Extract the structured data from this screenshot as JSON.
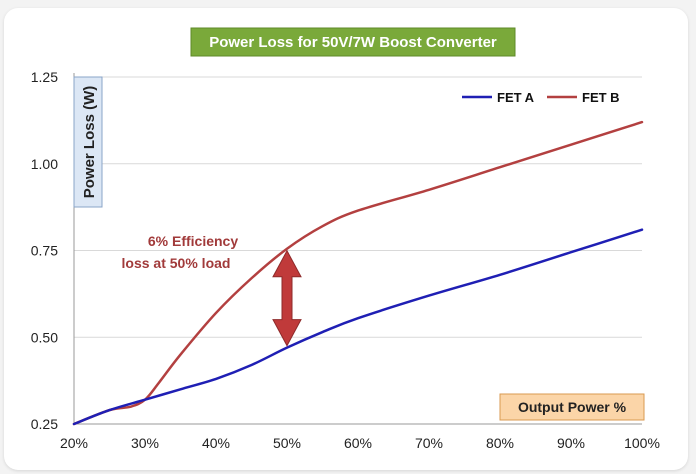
{
  "chart_data": {
    "type": "line",
    "title": "Power Loss for 50V/7W Boost Converter",
    "xlabel": "Output Power %",
    "ylabel": "Power Loss (W)",
    "x_ticks": [
      "20%",
      "30%",
      "40%",
      "50%",
      "60%",
      "70%",
      "80%",
      "90%",
      "100%"
    ],
    "y_ticks": [
      "0.25",
      "0.50",
      "0.75",
      "1.00",
      "1.25"
    ],
    "xlim": [
      20,
      100
    ],
    "ylim": [
      0.25,
      1.25
    ],
    "grid": "horizontal",
    "legend_position": "top-right",
    "series": [
      {
        "name": "FET A",
        "color": "#1f1fb4",
        "x": [
          20,
          25,
          30,
          35,
          40,
          45,
          50,
          55,
          60,
          70,
          80,
          90,
          100
        ],
        "values": [
          0.25,
          0.29,
          0.32,
          0.35,
          0.38,
          0.42,
          0.47,
          0.515,
          0.555,
          0.62,
          0.68,
          0.745,
          0.81
        ]
      },
      {
        "name": "FET B",
        "color": "#b34040",
        "x": [
          20,
          25,
          28,
          30,
          32,
          35,
          40,
          45,
          50,
          55,
          60,
          70,
          80,
          90,
          100
        ],
        "values": [
          0.25,
          0.29,
          0.3,
          0.32,
          0.37,
          0.45,
          0.57,
          0.67,
          0.755,
          0.82,
          0.865,
          0.925,
          0.99,
          1.055,
          1.12
        ]
      }
    ],
    "annotations": [
      {
        "text_line1": "6% Efficiency",
        "text_line2": "loss at 50% load",
        "arrow_x": 50,
        "arrow_from": 0.47,
        "arrow_to": 0.755,
        "color": "#c03a3a"
      }
    ]
  },
  "colors": {
    "title_bg": "#7aa93a",
    "ylabel_bg": "#dce7f5",
    "xlabel_bg": "#fbd5a8",
    "grid": "#d9d9d9"
  }
}
